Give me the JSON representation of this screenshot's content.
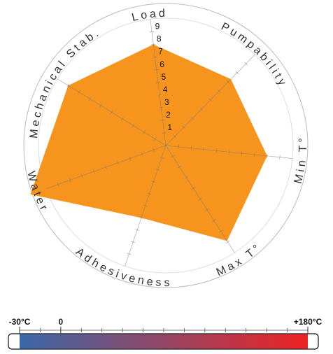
{
  "chart_data": {
    "type": "radar",
    "categories": [
      "Load",
      "Pumpability",
      "Min T°",
      "Max T°",
      "Adhesiveness",
      "Water",
      "Mechanical Stab."
    ],
    "values": [
      8.0,
      7.3,
      8.0,
      8.9,
      6.0,
      11.3,
      9.0
    ],
    "color": "#f7941d",
    "rlim": [
      0,
      10
    ],
    "rticks": [
      1,
      2,
      3,
      4,
      5,
      6,
      7,
      8,
      9
    ],
    "rotation": -7,
    "colorbar": {
      "lim": [
        -30,
        180
      ],
      "ticks": [
        {
          "value": -30,
          "label": "-30°C"
        },
        {
          "value": 0,
          "label": "0"
        },
        {
          "value": 180,
          "label": "+180°C"
        }
      ],
      "minor_ticks": [
        -15,
        15,
        30,
        45,
        60,
        75,
        90,
        105,
        120,
        135,
        150,
        165
      ],
      "colors": [
        "#3a68a8",
        "#ee2222"
      ]
    }
  }
}
